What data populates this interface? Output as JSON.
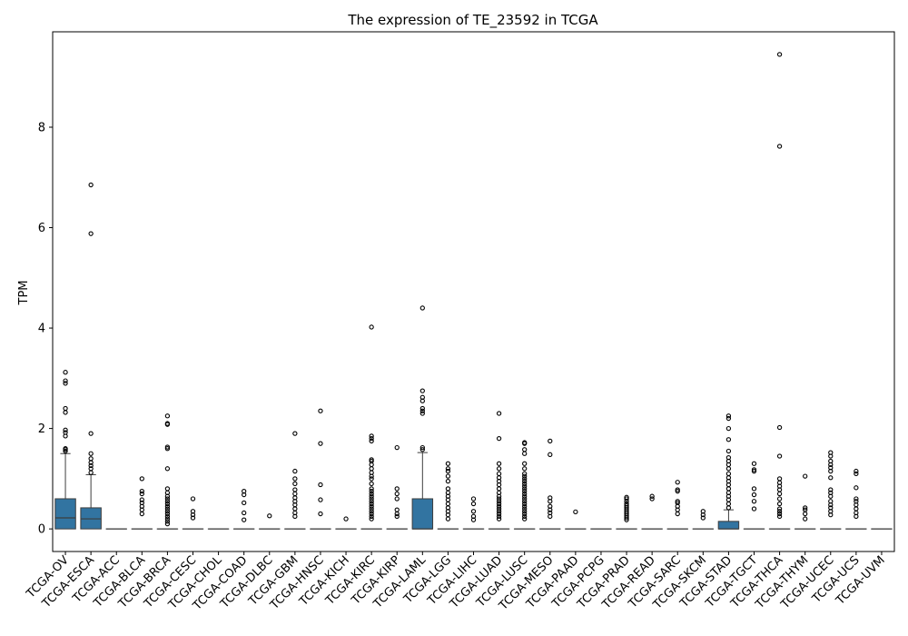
{
  "chart_data": {
    "type": "box",
    "title": "The expression of TE_23592 in TCGA",
    "xlabel": "",
    "ylabel": "TPM",
    "ylim": [
      -0.45,
      9.9
    ],
    "yticks": [
      0,
      2,
      4,
      6,
      8
    ],
    "grid": false,
    "box_color": "#3274a1",
    "categories": [
      "TCGA-OV",
      "TCGA-ESCA",
      "TCGA-ACC",
      "TCGA-BLCA",
      "TCGA-BRCA",
      "TCGA-CESC",
      "TCGA-CHOL",
      "TCGA-COAD",
      "TCGA-DLBC",
      "TCGA-GBM",
      "TCGA-HNSC",
      "TCGA-KICH",
      "TCGA-KIRC",
      "TCGA-KIRP",
      "TCGA-LAML",
      "TCGA-LGG",
      "TCGA-LIHC",
      "TCGA-LUAD",
      "TCGA-LUSC",
      "TCGA-MESO",
      "TCGA-PAAD",
      "TCGA-PCPG",
      "TCGA-PRAD",
      "TCGA-READ",
      "TCGA-SARC",
      "TCGA-SKCM",
      "TCGA-STAD",
      "TCGA-TGCT",
      "TCGA-THCA",
      "TCGA-THYM",
      "TCGA-UCEC",
      "TCGA-UCS",
      "TCGA-UVM"
    ],
    "boxes": [
      {
        "q1": 0,
        "median": 0.22,
        "q3": 0.6,
        "whislo": 0,
        "whishi": 1.5,
        "fliers": [
          1.55,
          1.58,
          1.6,
          1.85,
          1.92,
          1.97,
          2.32,
          2.4,
          2.9,
          2.95,
          3.12
        ]
      },
      {
        "q1": 0,
        "median": 0.2,
        "q3": 0.42,
        "whislo": 0,
        "whishi": 1.08,
        "fliers": [
          1.12,
          1.2,
          1.26,
          1.32,
          1.4,
          1.5,
          1.9,
          5.88,
          6.85
        ]
      },
      {
        "q1": 0,
        "median": 0,
        "q3": 0,
        "whislo": 0,
        "whishi": 0,
        "fliers": []
      },
      {
        "q1": 0,
        "median": 0,
        "q3": 0,
        "whislo": 0,
        "whishi": 0,
        "fliers": [
          0.3,
          0.38,
          0.45,
          0.52,
          0.58,
          0.7,
          0.75,
          1.0
        ]
      },
      {
        "q1": 0,
        "median": 0,
        "q3": 0,
        "whislo": 0,
        "whishi": 0,
        "fliers": [
          0.1,
          0.15,
          0.2,
          0.25,
          0.3,
          0.35,
          0.4,
          0.45,
          0.5,
          0.55,
          0.6,
          0.65,
          0.72,
          0.8,
          1.2,
          1.6,
          1.63,
          2.08,
          2.1,
          2.25
        ]
      },
      {
        "q1": 0,
        "median": 0,
        "q3": 0,
        "whislo": 0,
        "whishi": 0,
        "fliers": [
          0.22,
          0.28,
          0.35,
          0.6
        ]
      },
      {
        "q1": 0,
        "median": 0,
        "q3": 0,
        "whislo": 0,
        "whishi": 0,
        "fliers": []
      },
      {
        "q1": 0,
        "median": 0,
        "q3": 0,
        "whislo": 0,
        "whishi": 0,
        "fliers": [
          0.18,
          0.32,
          0.52,
          0.68,
          0.75
        ]
      },
      {
        "q1": 0,
        "median": 0,
        "q3": 0,
        "whislo": 0,
        "whishi": 0,
        "fliers": [
          0.26
        ]
      },
      {
        "q1": 0,
        "median": 0,
        "q3": 0,
        "whislo": 0,
        "whishi": 0,
        "fliers": [
          0.25,
          0.32,
          0.4,
          0.48,
          0.55,
          0.62,
          0.7,
          0.78,
          0.9,
          1.0,
          1.15,
          1.9
        ]
      },
      {
        "q1": 0,
        "median": 0,
        "q3": 0,
        "whislo": 0,
        "whishi": 0,
        "fliers": [
          0.3,
          0.58,
          0.88,
          1.7,
          2.35
        ]
      },
      {
        "q1": 0,
        "median": 0,
        "q3": 0,
        "whislo": 0,
        "whishi": 0,
        "fliers": [
          0.2
        ]
      },
      {
        "q1": 0,
        "median": 0,
        "q3": 0,
        "whislo": 0,
        "whishi": 0,
        "fliers": [
          0.2,
          0.25,
          0.3,
          0.35,
          0.4,
          0.45,
          0.5,
          0.55,
          0.6,
          0.65,
          0.7,
          0.75,
          0.8,
          0.9,
          1.0,
          1.05,
          1.12,
          1.2,
          1.28,
          1.35,
          1.38,
          1.75,
          1.8,
          1.85,
          4.02
        ]
      },
      {
        "q1": 0,
        "median": 0,
        "q3": 0,
        "whislo": 0,
        "whishi": 0,
        "fliers": [
          0.25,
          0.3,
          0.38,
          0.6,
          0.7,
          0.8,
          1.62
        ]
      },
      {
        "q1": 0,
        "median": 0,
        "q3": 0.6,
        "whislo": 0,
        "whishi": 1.52,
        "fliers": [
          1.58,
          1.62,
          2.3,
          2.35,
          2.4,
          2.55,
          2.62,
          2.75,
          4.4
        ]
      },
      {
        "q1": 0,
        "median": 0,
        "q3": 0,
        "whislo": 0,
        "whishi": 0,
        "fliers": [
          0.2,
          0.28,
          0.35,
          0.42,
          0.5,
          0.58,
          0.65,
          0.72,
          0.8,
          0.95,
          1.05,
          1.15,
          1.2,
          1.3
        ]
      },
      {
        "q1": 0,
        "median": 0,
        "q3": 0,
        "whislo": 0,
        "whishi": 0,
        "fliers": [
          0.18,
          0.25,
          0.35,
          0.5,
          0.6
        ]
      },
      {
        "q1": 0,
        "median": 0,
        "q3": 0,
        "whislo": 0,
        "whishi": 0,
        "fliers": [
          0.2,
          0.25,
          0.3,
          0.35,
          0.4,
          0.45,
          0.5,
          0.55,
          0.6,
          0.65,
          0.72,
          0.8,
          0.88,
          0.95,
          1.02,
          1.1,
          1.2,
          1.3,
          1.8,
          2.3
        ]
      },
      {
        "q1": 0,
        "median": 0,
        "q3": 0,
        "whislo": 0,
        "whishi": 0,
        "fliers": [
          0.2,
          0.25,
          0.3,
          0.35,
          0.4,
          0.45,
          0.5,
          0.55,
          0.6,
          0.65,
          0.7,
          0.75,
          0.8,
          0.85,
          0.9,
          0.95,
          1.0,
          1.05,
          1.1,
          1.2,
          1.3,
          1.5,
          1.58,
          1.7,
          1.72
        ]
      },
      {
        "q1": 0,
        "median": 0,
        "q3": 0,
        "whislo": 0,
        "whishi": 0,
        "fliers": [
          0.25,
          0.32,
          0.38,
          0.45,
          0.55,
          0.62,
          1.48,
          1.75
        ]
      },
      {
        "q1": 0,
        "median": 0,
        "q3": 0,
        "whislo": 0,
        "whishi": 0,
        "fliers": [
          0.34
        ]
      },
      {
        "q1": 0,
        "median": 0,
        "q3": 0,
        "whislo": 0,
        "whishi": 0,
        "fliers": []
      },
      {
        "q1": 0,
        "median": 0,
        "q3": 0,
        "whislo": 0,
        "whishi": 0,
        "fliers": [
          0.18,
          0.22,
          0.26,
          0.3,
          0.34,
          0.38,
          0.42,
          0.46,
          0.5,
          0.55,
          0.6,
          0.63
        ]
      },
      {
        "q1": 0,
        "median": 0,
        "q3": 0,
        "whislo": 0,
        "whishi": 0,
        "fliers": [
          0.6,
          0.65
        ]
      },
      {
        "q1": 0,
        "median": 0,
        "q3": 0,
        "whislo": 0,
        "whishi": 0,
        "fliers": [
          0.3,
          0.38,
          0.45,
          0.52,
          0.55,
          0.75,
          0.78,
          0.93
        ]
      },
      {
        "q1": 0,
        "median": 0,
        "q3": 0,
        "whislo": 0,
        "whishi": 0,
        "fliers": [
          0.22,
          0.28,
          0.35
        ]
      },
      {
        "q1": 0,
        "median": 0,
        "q3": 0.15,
        "whislo": 0,
        "whishi": 0.38,
        "fliers": [
          0.42,
          0.5,
          0.58,
          0.65,
          0.72,
          0.8,
          0.88,
          0.95,
          1.02,
          1.1,
          1.2,
          1.28,
          1.35,
          1.42,
          1.55,
          1.78,
          2.0,
          2.2,
          2.25
        ]
      },
      {
        "q1": 0,
        "median": 0,
        "q3": 0,
        "whislo": 0,
        "whishi": 0,
        "fliers": [
          0.4,
          0.55,
          0.68,
          0.8,
          1.15,
          1.18,
          1.3
        ]
      },
      {
        "q1": 0,
        "median": 0,
        "q3": 0,
        "whislo": 0,
        "whishi": 0,
        "fliers": [
          0.25,
          0.3,
          0.35,
          0.4,
          0.5,
          0.6,
          0.7,
          0.78,
          0.85,
          0.92,
          1.0,
          1.45,
          2.02,
          7.62,
          9.45
        ]
      },
      {
        "q1": 0,
        "median": 0,
        "q3": 0,
        "whislo": 0,
        "whishi": 0,
        "fliers": [
          0.2,
          0.3,
          0.38,
          0.42,
          1.05
        ]
      },
      {
        "q1": 0,
        "median": 0,
        "q3": 0,
        "whislo": 0,
        "whishi": 0,
        "fliers": [
          0.28,
          0.35,
          0.42,
          0.48,
          0.55,
          0.65,
          0.72,
          0.78,
          1.02,
          1.15,
          1.22,
          1.28,
          1.35,
          1.45,
          1.52
        ]
      },
      {
        "q1": 0,
        "median": 0,
        "q3": 0,
        "whislo": 0,
        "whishi": 0,
        "fliers": [
          0.25,
          0.32,
          0.4,
          0.48,
          0.55,
          0.6,
          0.82,
          1.1,
          1.15
        ]
      },
      {
        "q1": 0,
        "median": 0,
        "q3": 0,
        "whislo": 0,
        "whishi": 0,
        "fliers": []
      }
    ]
  }
}
